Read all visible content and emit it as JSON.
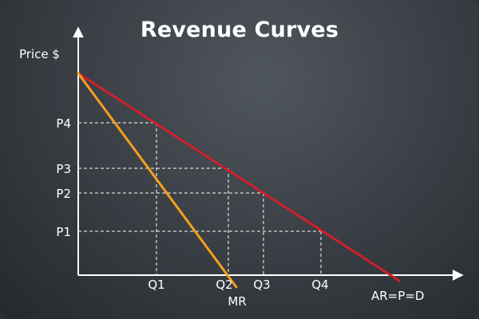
{
  "title": "Revenue Curves",
  "y_axis_label": "Price $",
  "x_axis_label": "",
  "price_labels": [
    "P4",
    "P3",
    "P2",
    "P1"
  ],
  "quantity_labels": [
    "Q1",
    "Q2",
    "Q3",
    "Q4"
  ],
  "curves": {
    "demand": {
      "label": "AR=P=D",
      "color": "#d0202a"
    },
    "marginal": {
      "label": "MR",
      "color": "#f5a01a"
    }
  },
  "colors": {
    "axis": "#ffffff",
    "guides": "#ffffff",
    "text": "#ffffff"
  }
}
